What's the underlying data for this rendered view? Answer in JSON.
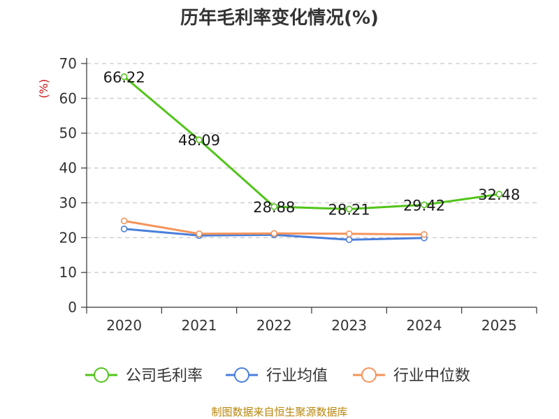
{
  "chart_data": {
    "type": "line",
    "title": "历年毛利率变化情况(%)",
    "ylabel": "(%)",
    "xlabel": "",
    "categories": [
      "2020",
      "2021",
      "2022",
      "2023",
      "2024",
      "2025"
    ],
    "ylim": [
      0,
      70
    ],
    "yticks": [
      0,
      10,
      20,
      30,
      40,
      50,
      60,
      70
    ],
    "grid": "horizontal-dashed",
    "legend_position": "bottom",
    "series": [
      {
        "name": "公司毛利率",
        "color": "#52c41a",
        "values": [
          66.22,
          48.09,
          28.88,
          28.21,
          29.42,
          32.48
        ],
        "labels": [
          "66.22",
          "48.09",
          "28.88",
          "28.21",
          "29.42",
          "32.48"
        ]
      },
      {
        "name": "行业均值",
        "color": "#4a7fdb",
        "values": [
          22.5,
          20.6,
          20.8,
          19.4,
          19.9,
          null
        ]
      },
      {
        "name": "行业中位数",
        "color": "#f4935a",
        "values": [
          24.8,
          21.1,
          21.2,
          21.1,
          20.9,
          null
        ]
      }
    ]
  },
  "source": "制图数据来自恒生聚源数据库"
}
